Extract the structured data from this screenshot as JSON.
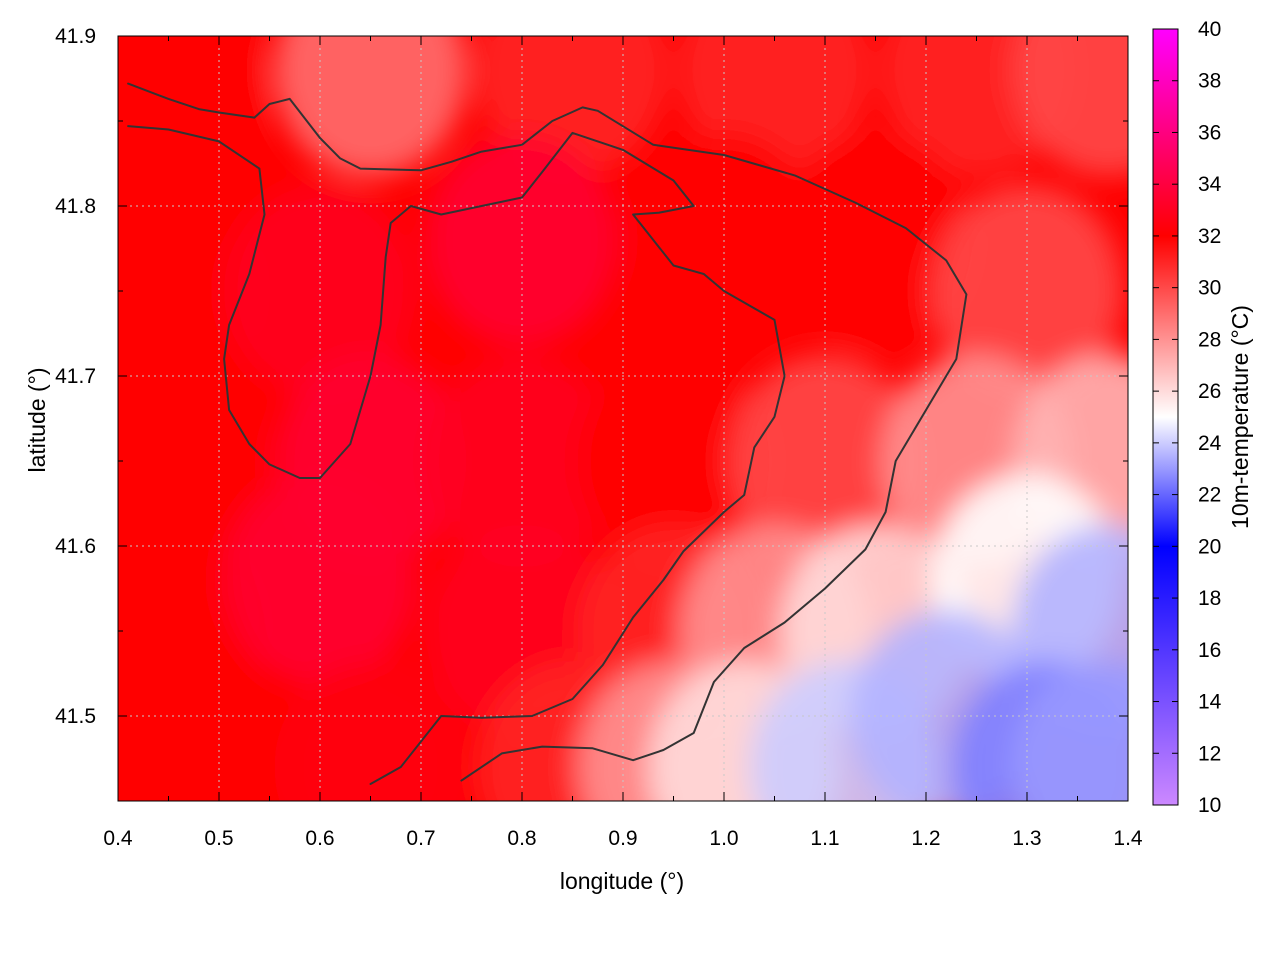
{
  "chart_data": {
    "type": "heatmap",
    "title": "",
    "xlabel": "longitude (°)",
    "ylabel": "latitude (°)",
    "colorbar_label": "10m-temperature (°C)",
    "xlim": [
      0.4,
      1.4
    ],
    "ylim": [
      41.45,
      41.9
    ],
    "x_ticks": [
      0.4,
      0.5,
      0.6,
      0.7,
      0.8,
      0.9,
      1.0,
      1.1,
      1.2,
      1.3,
      1.4
    ],
    "x_tick_labels": [
      "0.4",
      "0.5",
      "0.6",
      "0.7",
      "0.8",
      "0.9",
      "1.0",
      "1.1",
      "1.2",
      "1.3",
      "1.4"
    ],
    "y_ticks": [
      41.5,
      41.6,
      41.7,
      41.8,
      41.9
    ],
    "y_tick_labels": [
      "41.5",
      "41.6",
      "41.7",
      "41.8",
      "41.9"
    ],
    "colorbar_range": [
      10,
      40
    ],
    "colorbar_ticks": [
      10,
      12,
      14,
      16,
      18,
      20,
      22,
      24,
      26,
      28,
      30,
      32,
      34,
      36,
      38,
      40
    ],
    "colorbar_tick_labels": [
      "10",
      "12",
      "14",
      "16",
      "18",
      "20",
      "22",
      "24",
      "26",
      "28",
      "30",
      "32",
      "34",
      "36",
      "38",
      "40"
    ],
    "colormap": [
      {
        "value": 10,
        "color": "#cc88ff"
      },
      {
        "value": 20,
        "color": "#0000ff"
      },
      {
        "value": 25,
        "color": "#ffffff"
      },
      {
        "value": 32,
        "color": "#ff0000"
      },
      {
        "value": 40,
        "color": "#ff00ff"
      }
    ],
    "grid": true,
    "contour_color": "#333333",
    "field_samples": [
      {
        "lon": 0.45,
        "lat": 41.87,
        "temp": 32
      },
      {
        "lon": 0.65,
        "lat": 41.88,
        "temp": 29
      },
      {
        "lon": 0.85,
        "lat": 41.88,
        "temp": 31
      },
      {
        "lon": 1.05,
        "lat": 41.88,
        "temp": 31
      },
      {
        "lon": 1.25,
        "lat": 41.88,
        "temp": 31
      },
      {
        "lon": 1.38,
        "lat": 41.88,
        "temp": 30
      },
      {
        "lon": 0.45,
        "lat": 41.75,
        "temp": 32
      },
      {
        "lon": 0.6,
        "lat": 41.75,
        "temp": 33
      },
      {
        "lon": 0.8,
        "lat": 41.78,
        "temp": 33.5
      },
      {
        "lon": 1.0,
        "lat": 41.78,
        "temp": 32
      },
      {
        "lon": 1.15,
        "lat": 41.78,
        "temp": 32
      },
      {
        "lon": 1.3,
        "lat": 41.75,
        "temp": 30
      },
      {
        "lon": 0.45,
        "lat": 41.65,
        "temp": 32
      },
      {
        "lon": 0.65,
        "lat": 41.65,
        "temp": 33.5
      },
      {
        "lon": 0.8,
        "lat": 41.65,
        "temp": 33
      },
      {
        "lon": 0.95,
        "lat": 41.65,
        "temp": 32
      },
      {
        "lon": 1.1,
        "lat": 41.65,
        "temp": 30
      },
      {
        "lon": 1.25,
        "lat": 41.65,
        "temp": 28
      },
      {
        "lon": 1.38,
        "lat": 41.65,
        "temp": 27
      },
      {
        "lon": 0.45,
        "lat": 41.55,
        "temp": 32
      },
      {
        "lon": 0.6,
        "lat": 41.58,
        "temp": 33.5
      },
      {
        "lon": 0.8,
        "lat": 41.55,
        "temp": 33
      },
      {
        "lon": 0.95,
        "lat": 41.55,
        "temp": 31
      },
      {
        "lon": 1.05,
        "lat": 41.55,
        "temp": 28
      },
      {
        "lon": 1.15,
        "lat": 41.55,
        "temp": 26
      },
      {
        "lon": 1.3,
        "lat": 41.58,
        "temp": 25
      },
      {
        "lon": 1.38,
        "lat": 41.55,
        "temp": 23.5
      },
      {
        "lon": 0.45,
        "lat": 41.47,
        "temp": 32
      },
      {
        "lon": 0.65,
        "lat": 41.47,
        "temp": 32.5
      },
      {
        "lon": 0.85,
        "lat": 41.47,
        "temp": 31
      },
      {
        "lon": 0.95,
        "lat": 41.47,
        "temp": 28
      },
      {
        "lon": 1.02,
        "lat": 41.47,
        "temp": 26
      },
      {
        "lon": 1.12,
        "lat": 41.47,
        "temp": 24
      },
      {
        "lon": 1.22,
        "lat": 41.5,
        "temp": 23.5
      },
      {
        "lon": 1.32,
        "lat": 41.47,
        "temp": 22.5
      },
      {
        "lon": 1.38,
        "lat": 41.47,
        "temp": 23
      }
    ],
    "contours": [
      [
        [
          0.41,
          41.872
        ],
        [
          0.45,
          41.863
        ],
        [
          0.48,
          41.857
        ],
        [
          0.5,
          41.855
        ],
        [
          0.535,
          41.852
        ],
        [
          0.55,
          41.86
        ],
        [
          0.57,
          41.863
        ],
        [
          0.6,
          41.84
        ],
        [
          0.62,
          41.828
        ],
        [
          0.64,
          41.822
        ],
        [
          0.7,
          41.821
        ],
        [
          0.73,
          41.826
        ],
        [
          0.76,
          41.832
        ],
        [
          0.8,
          41.836
        ],
        [
          0.83,
          41.85
        ],
        [
          0.86,
          41.858
        ],
        [
          0.875,
          41.856
        ],
        [
          0.93,
          41.836
        ],
        [
          1.0,
          41.83
        ],
        [
          1.07,
          41.818
        ],
        [
          1.13,
          41.802
        ],
        [
          1.18,
          41.787
        ],
        [
          1.22,
          41.768
        ],
        [
          1.24,
          41.748
        ],
        [
          1.23,
          41.71
        ],
        [
          1.2,
          41.68
        ],
        [
          1.17,
          41.65
        ],
        [
          1.16,
          41.62
        ],
        [
          1.14,
          41.598
        ],
        [
          1.1,
          41.575
        ],
        [
          1.06,
          41.555
        ],
        [
          1.02,
          41.54
        ],
        [
          0.99,
          41.52
        ],
        [
          0.97,
          41.49
        ],
        [
          0.94,
          41.48
        ],
        [
          0.91,
          41.474
        ],
        [
          0.87,
          41.481
        ],
        [
          0.82,
          41.482
        ],
        [
          0.78,
          41.478
        ],
        [
          0.74,
          41.462
        ]
      ],
      [
        [
          0.41,
          41.847
        ],
        [
          0.45,
          41.845
        ],
        [
          0.5,
          41.838
        ],
        [
          0.54,
          41.822
        ],
        [
          0.545,
          41.795
        ],
        [
          0.53,
          41.76
        ],
        [
          0.51,
          41.73
        ],
        [
          0.505,
          41.71
        ],
        [
          0.51,
          41.68
        ],
        [
          0.53,
          41.66
        ],
        [
          0.55,
          41.648
        ],
        [
          0.58,
          41.64
        ],
        [
          0.6,
          41.64
        ],
        [
          0.63,
          41.66
        ],
        [
          0.65,
          41.7
        ],
        [
          0.66,
          41.73
        ],
        [
          0.665,
          41.77
        ],
        [
          0.67,
          41.79
        ],
        [
          0.69,
          41.8
        ],
        [
          0.72,
          41.795
        ],
        [
          0.76,
          41.8
        ],
        [
          0.8,
          41.805
        ],
        [
          0.82,
          41.82
        ],
        [
          0.85,
          41.843
        ],
        [
          0.9,
          41.833
        ],
        [
          0.95,
          41.815
        ],
        [
          0.97,
          41.8
        ],
        [
          0.935,
          41.796
        ],
        [
          0.91,
          41.795
        ],
        [
          0.93,
          41.78
        ],
        [
          0.95,
          41.765
        ],
        [
          0.98,
          41.76
        ],
        [
          1.0,
          41.75
        ],
        [
          1.05,
          41.733
        ],
        [
          1.06,
          41.7
        ],
        [
          1.05,
          41.676
        ],
        [
          1.03,
          41.658
        ],
        [
          1.02,
          41.63
        ],
        [
          1.0,
          41.62
        ],
        [
          0.96,
          41.597
        ],
        [
          0.94,
          41.58
        ],
        [
          0.91,
          41.558
        ],
        [
          0.88,
          41.53
        ],
        [
          0.85,
          41.51
        ],
        [
          0.81,
          41.5
        ],
        [
          0.76,
          41.499
        ],
        [
          0.72,
          41.5
        ],
        [
          0.68,
          41.47
        ],
        [
          0.65,
          41.46
        ]
      ]
    ]
  }
}
